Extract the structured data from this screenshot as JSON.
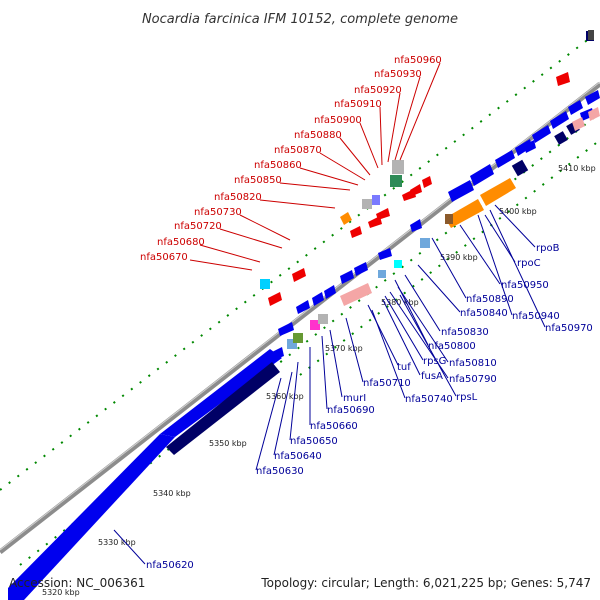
{
  "title": "Nocardia farcinica IFM 10152, complete genome",
  "footer": {
    "accession": "Accession: NC_006361",
    "summary": "Topology: circular; Length: 6,021,225 bp; Genes: 5,747"
  },
  "kbp_ticks": [
    "5320 kbp",
    "5330 kbp",
    "5340 kbp",
    "5350 kbp",
    "5360 kbp",
    "5370 kbp",
    "5380 kbp",
    "5390 kbp",
    "5400 kbp",
    "5410 kbp"
  ],
  "red_labels": [
    "nfa50960",
    "nfa50930",
    "nfa50920",
    "nfa50910",
    "nfa50900",
    "nfa50880",
    "nfa50870",
    "nfa50860",
    "nfa50850",
    "nfa50820",
    "nfa50730",
    "nfa50720",
    "nfa50680",
    "nfa50670"
  ],
  "blue_labels": [
    "rpoB",
    "rpoC",
    "nfa50950",
    "nfa50890",
    "nfa50940",
    "nfa50970",
    "nfa50840",
    "nfa50830",
    "nfa50800",
    "nfa50810",
    "nfa50790",
    "rpsG",
    "fusA",
    "tuf",
    "rpsL",
    "nfa50740",
    "nfa50710",
    "murI",
    "nfa50690",
    "nfa50660",
    "nfa50650",
    "nfa50640",
    "nfa50630",
    "nfa50620"
  ],
  "colors": {
    "backbone": "#8c8c8c",
    "gene_blue": "#0000ee",
    "gene_navy": "#000066",
    "rrna_orange": "#ff8c00",
    "gene_red": "#ee0000",
    "tick_green": "#008800",
    "label_red": "#cc0000",
    "label_blue": "#000099"
  }
}
